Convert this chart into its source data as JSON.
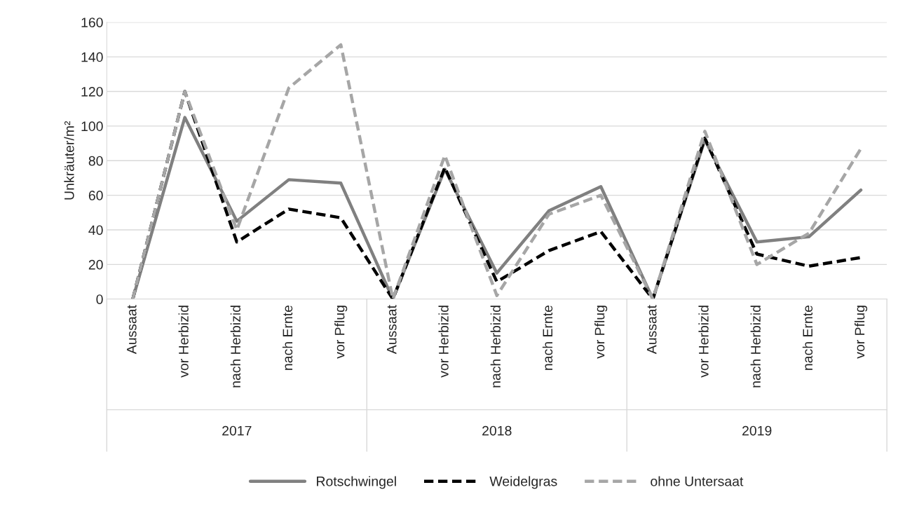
{
  "chart_data": {
    "type": "line",
    "ylabel": "Unkräuter/m²",
    "categories": [
      "Aussaat",
      "vor Herbizid",
      "nach Herbizid",
      "nach Ernte",
      "vor Pflug",
      "Aussaat",
      "vor Herbizid",
      "nach Herbizid",
      "nach Ernte",
      "vor Pflug",
      "Aussaat",
      "vor Herbizid",
      "nach Herbizid",
      "nach Ernte",
      "vor Pflug"
    ],
    "series": [
      {
        "name": "Rotschwingel",
        "color": "#808080",
        "line_style": "solid",
        "values": [
          0,
          105,
          45,
          69,
          67,
          0,
          75,
          15,
          51,
          65,
          0,
          92,
          33,
          36,
          63
        ]
      },
      {
        "name": "Weidelgras",
        "color": "#000000",
        "line_style": "dashed",
        "values": [
          0,
          120,
          33,
          52,
          47,
          0,
          76,
          10,
          28,
          39,
          0,
          93,
          26,
          19,
          24
        ]
      },
      {
        "name": "ohne Untersaat",
        "color": "#a6a6a6",
        "line_style": "dashed",
        "values": [
          0,
          120,
          40,
          122,
          147,
          0,
          83,
          2,
          49,
          60,
          0,
          97,
          20,
          38,
          87
        ]
      }
    ],
    "annotations": [
      "2017",
      "2018",
      "2019"
    ],
    "ylim": [
      0,
      160
    ],
    "yticks": [
      0,
      20,
      40,
      60,
      80,
      100,
      120,
      140,
      160
    ],
    "grid": "y",
    "legend": "bottom",
    "marker": "none"
  }
}
